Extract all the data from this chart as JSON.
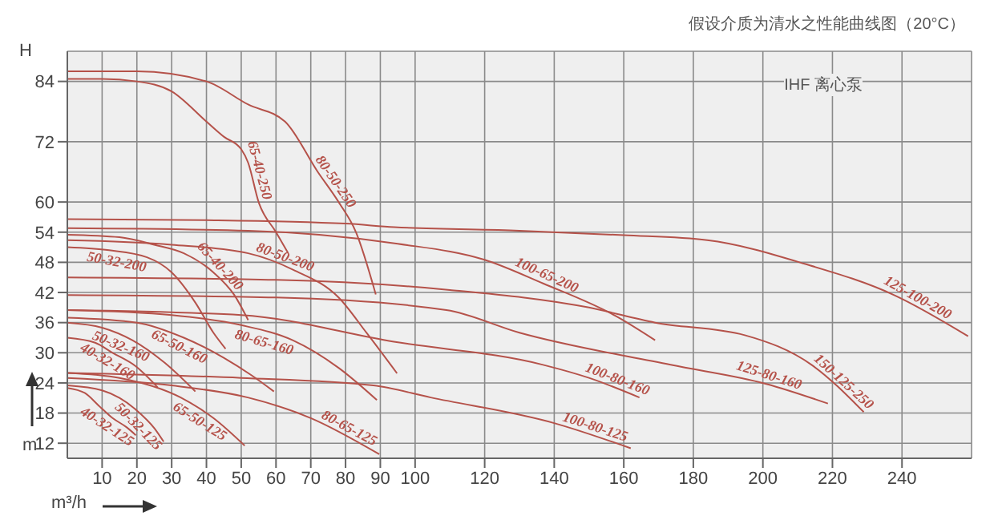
{
  "chart_data": {
    "type": "line",
    "title": "假设介质为清水之性能曲线图（20°C）",
    "xlabel": "m³/h",
    "ylabel": "H",
    "annotations": [
      "IHF 离心泵",
      "m"
    ],
    "xlim": [
      0,
      260
    ],
    "xticks": [
      10,
      20,
      30,
      40,
      50,
      60,
      70,
      80,
      90,
      100,
      120,
      140,
      160,
      180,
      200,
      220,
      240
    ],
    "ylim": [
      9,
      90
    ],
    "yticks": [
      12,
      18,
      24,
      30,
      36,
      42,
      48,
      54,
      60,
      72,
      84
    ],
    "grid": true,
    "marker": "none",
    "line_style": "solid",
    "series": [
      {
        "name": "80-50-250",
        "color": "#b5524a",
        "x": [
          0,
          20,
          40,
          52,
          62.6,
          72,
          78,
          83,
          88.7
        ],
        "values": [
          86,
          86,
          84,
          79.4,
          76,
          66,
          60,
          54,
          41.6
        ]
      },
      {
        "name": "65-40-250",
        "color": "#b5524a",
        "x": [
          0,
          10,
          20,
          30,
          40,
          45,
          50,
          52,
          55,
          60,
          63.5
        ],
        "values": [
          84.5,
          84.5,
          84,
          82,
          76,
          73,
          70.5,
          67.8,
          60,
          54,
          49.8
        ]
      },
      {
        "name": "125-100-200",
        "color": "#b5524a",
        "x": [
          0,
          40,
          80,
          94,
          130,
          160,
          184,
          212,
          238,
          259
        ],
        "values": [
          56.6,
          56.4,
          55.7,
          55,
          54.3,
          53.4,
          52.4,
          47.7,
          41.4,
          33.3
        ]
      },
      {
        "name": "100-65-200",
        "color": "#b5524a",
        "x": [
          0,
          52,
          95,
          120,
          136.8,
          158,
          169
        ],
        "values": [
          54.8,
          54.3,
          51.7,
          48.5,
          43.8,
          37.2,
          32.5
        ]
      },
      {
        "name": "65-40-200",
        "color": "#b5524a",
        "x": [
          0,
          15,
          25,
          33.5,
          42,
          48,
          52
        ],
        "values": [
          53.5,
          53,
          51.5,
          49.8,
          46,
          41.5,
          36.5
        ]
      },
      {
        "name": "80-50-200",
        "color": "#b5524a",
        "x": [
          0,
          30,
          52,
          65,
          78,
          86,
          94.8
        ],
        "values": [
          52.4,
          51.5,
          49.8,
          46.5,
          41,
          34,
          25.9
        ]
      },
      {
        "name": "50-32-200",
        "color": "#b5524a",
        "x": [
          0,
          12,
          22.9,
          30,
          36.8,
          42,
          45.5
        ],
        "values": [
          51,
          50.4,
          49,
          46,
          40,
          34,
          30.8
        ]
      },
      {
        "name": "150-125-250",
        "color": "#b5524a",
        "x": [
          0,
          60,
          110,
          150,
          169,
          194.8,
          214,
          229
        ],
        "values": [
          45,
          44.5,
          42.5,
          39,
          36,
          33.5,
          27.6,
          18.2
        ]
      },
      {
        "name": "125-80-160",
        "color": "#b5524a",
        "x": [
          0,
          60,
          109,
          130,
          173.5,
          201,
          218.7
        ],
        "values": [
          41.5,
          41,
          38.5,
          34,
          27.6,
          23.8,
          19.9
        ]
      },
      {
        "name": "100-80-160",
        "color": "#b5524a",
        "x": [
          0,
          50,
          93.9,
          136.8,
          150,
          164.5
        ],
        "values": [
          38.5,
          37.5,
          32.2,
          27.6,
          25,
          21.1
        ]
      },
      {
        "name": "80-65-160",
        "color": "#b5524a",
        "x": [
          0,
          30,
          50,
          64.8,
          78,
          89
        ],
        "values": [
          38.5,
          37.5,
          35.5,
          32.5,
          27,
          20.6
        ]
      },
      {
        "name": "65-50-160",
        "color": "#b5524a",
        "x": [
          0,
          20,
          33.5,
          45,
          53,
          59.4
        ],
        "values": [
          37,
          36,
          33,
          29,
          25.5,
          22.3
        ]
      },
      {
        "name": "50-32-160",
        "color": "#b5524a",
        "x": [
          0,
          10,
          18.7,
          28,
          36.8
        ],
        "values": [
          36,
          35,
          32.5,
          28,
          22.3
        ]
      },
      {
        "name": "40-32-160",
        "color": "#b5524a",
        "x": [
          0,
          8,
          13,
          19.7,
          26
        ],
        "values": [
          33,
          32,
          30,
          27.3,
          23.1
        ]
      },
      {
        "name": "100-80-125",
        "color": "#b5524a",
        "x": [
          0,
          50,
          88,
          104.5,
          140,
          162
        ],
        "values": [
          26,
          25,
          23.5,
          21.1,
          16,
          11
        ]
      },
      {
        "name": "65-50-125",
        "color": "#b5524a",
        "x": [
          0,
          15,
          32.6,
          42,
          51
        ],
        "values": [
          26,
          25,
          21.1,
          17,
          11.5
        ]
      },
      {
        "name": "80-65-125",
        "color": "#b5524a",
        "x": [
          0,
          30,
          51.9,
          70,
          89.7
        ],
        "values": [
          25,
          23.5,
          21.1,
          17,
          9.8
        ]
      },
      {
        "name": "50-32-125",
        "color": "#b5524a",
        "x": [
          0,
          10,
          15,
          20,
          25,
          27.7
        ],
        "values": [
          23.5,
          22.5,
          21,
          18.5,
          15,
          12.3
        ]
      },
      {
        "name": "40-32-125",
        "color": "#b5524a",
        "x": [
          0,
          5,
          9,
          13,
          17,
          19.7
        ],
        "values": [
          23,
          22,
          19.5,
          17,
          15.2,
          13.6
        ]
      }
    ]
  }
}
